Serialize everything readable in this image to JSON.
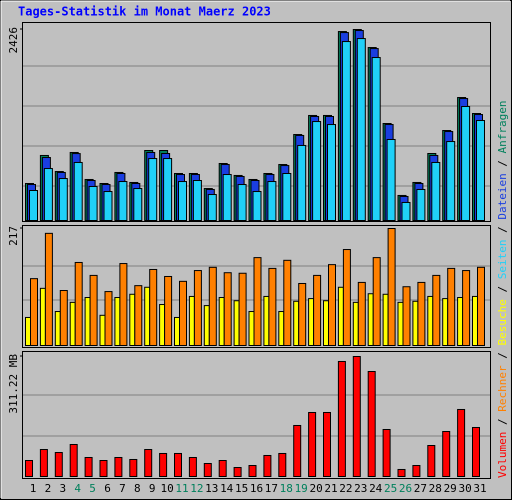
{
  "legend_separator": " / ",
  "chart_data": [
    {
      "type": "bar",
      "title": "Tages-Statistik im Monat Maerz 2023",
      "ylim": [
        0,
        2426
      ],
      "yticks": [
        2426
      ],
      "series": [
        {
          "name": "Anfragen",
          "color": "#00805c",
          "values": [
            470,
            826,
            622,
            864,
            521,
            470,
            610,
            483,
            889,
            889,
            597,
            597,
            406,
            724,
            572,
            521,
            597,
            711,
            1092,
            1334,
            1334,
            2400,
            2426,
            2197,
            1232,
            318,
            483,
            851,
            1143,
            1562,
            1359
          ]
        },
        {
          "name": "Dateien",
          "color": "#1a3ee0",
          "values": [
            457,
            800,
            610,
            850,
            508,
            457,
            597,
            470,
            864,
            851,
            584,
            584,
            394,
            711,
            559,
            508,
            584,
            698,
            1080,
            1321,
            1321,
            2387,
            2413,
            2184,
            1219,
            305,
            470,
            826,
            1130,
            1549,
            1346
          ]
        },
        {
          "name": "Seiten",
          "color": "#20d0f8",
          "values": [
            381,
            660,
            533,
            737,
            432,
            368,
            495,
            406,
            787,
            787,
            495,
            508,
            330,
            584,
            457,
            368,
            495,
            597,
            953,
            1257,
            1219,
            2273,
            2311,
            2070,
            1029,
            229,
            394,
            737,
            1003,
            1448,
            1270
          ]
        }
      ]
    },
    {
      "type": "bar",
      "ylim": [
        0,
        217
      ],
      "yticks": [
        217
      ],
      "series": [
        {
          "name": "Besuche",
          "color": "#ffff00",
          "values": [
            52,
            106,
            63,
            80,
            89,
            56,
            89,
            95,
            108,
            76,
            52,
            91,
            74,
            89,
            83,
            63,
            91,
            63,
            82,
            87,
            83,
            108,
            80,
            96,
            95,
            80,
            82,
            91,
            87,
            89,
            91
          ]
        },
        {
          "name": "Rechner",
          "color": "#ff8000",
          "values": [
            124,
            208,
            102,
            154,
            130,
            100,
            152,
            111,
            141,
            128,
            119,
            139,
            145,
            135,
            134,
            163,
            143,
            158,
            115,
            130,
            150,
            178,
            117,
            163,
            217,
            109,
            117,
            130,
            143,
            139,
            145
          ]
        }
      ]
    },
    {
      "type": "bar",
      "ylim": [
        0,
        311.22
      ],
      "yticks": [
        {
          "value": 311.22,
          "label": "311.22 MB"
        }
      ],
      "categories": [
        "1",
        "2",
        "3",
        "4",
        "5",
        "6",
        "7",
        "8",
        "9",
        "10",
        "11",
        "12",
        "13",
        "14",
        "15",
        "16",
        "17",
        "18",
        "19",
        "20",
        "21",
        "22",
        "23",
        "24",
        "25",
        "26",
        "27",
        "28",
        "29",
        "30",
        "31"
      ],
      "category_colors": [
        "#000000",
        "#000000",
        "#000000",
        "#00805c",
        "#00805c",
        "#000000",
        "#000000",
        "#000000",
        "#000000",
        "#000000",
        "#00805c",
        "#00805c",
        "#000000",
        "#000000",
        "#000000",
        "#000000",
        "#000000",
        "#00805c",
        "#00805c",
        "#000000",
        "#000000",
        "#000000",
        "#000000",
        "#000000",
        "#00805c",
        "#00805c",
        "#000000",
        "#000000",
        "#000000",
        "#000000",
        "#000000"
      ],
      "series": [
        {
          "name": "Volumen",
          "color": "#ff0000",
          "values": [
            41.5,
            70.0,
            62.2,
            83.0,
            49.3,
            41.5,
            49.3,
            44.1,
            70.0,
            59.7,
            59.7,
            49.3,
            33.7,
            41.5,
            23.3,
            28.5,
            54.5,
            59.7,
            132.3,
            166.0,
            166.0,
            298.3,
            311.22,
            272.3,
            121.9,
            18.2,
            28.5,
            80.4,
            116.7,
            173.8,
            127.1
          ]
        }
      ]
    }
  ]
}
